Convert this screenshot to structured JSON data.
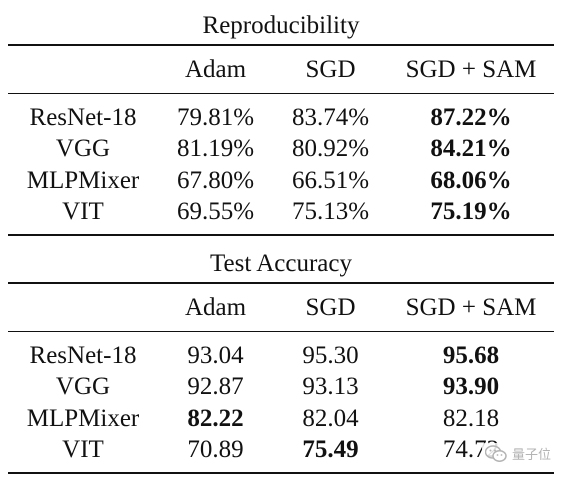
{
  "tables": [
    {
      "caption": "Reproducibility",
      "columns": [
        "",
        "Adam",
        "SGD",
        "SGD + SAM"
      ],
      "rows": [
        {
          "model": "ResNet-18",
          "values": [
            "79.81%",
            "83.74%",
            "87.22%"
          ],
          "bold": [
            false,
            false,
            true
          ]
        },
        {
          "model": "VGG",
          "values": [
            "81.19%",
            "80.92%",
            "84.21%"
          ],
          "bold": [
            false,
            false,
            true
          ]
        },
        {
          "model": "MLPMixer",
          "values": [
            "67.80%",
            "66.51%",
            "68.06%"
          ],
          "bold": [
            false,
            false,
            true
          ]
        },
        {
          "model": "VIT",
          "values": [
            "69.55%",
            "75.13%",
            "75.19%"
          ],
          "bold": [
            false,
            false,
            true
          ]
        }
      ]
    },
    {
      "caption": "Test Accuracy",
      "columns": [
        "",
        "Adam",
        "SGD",
        "SGD + SAM"
      ],
      "rows": [
        {
          "model": "ResNet-18",
          "values": [
            "93.04",
            "95.30",
            "95.68"
          ],
          "bold": [
            false,
            false,
            true
          ]
        },
        {
          "model": "VGG",
          "values": [
            "92.87",
            "93.13",
            "93.90"
          ],
          "bold": [
            false,
            false,
            true
          ]
        },
        {
          "model": "MLPMixer",
          "values": [
            "82.22",
            "82.04",
            "82.18"
          ],
          "bold": [
            true,
            false,
            false
          ]
        },
        {
          "model": "VIT",
          "values": [
            "70.89",
            "75.49",
            "74.72"
          ],
          "bold": [
            false,
            true,
            false
          ]
        }
      ]
    }
  ],
  "watermark": {
    "icon": "wechat-icon",
    "text": "量子位",
    "color": "#b4b4b4"
  }
}
